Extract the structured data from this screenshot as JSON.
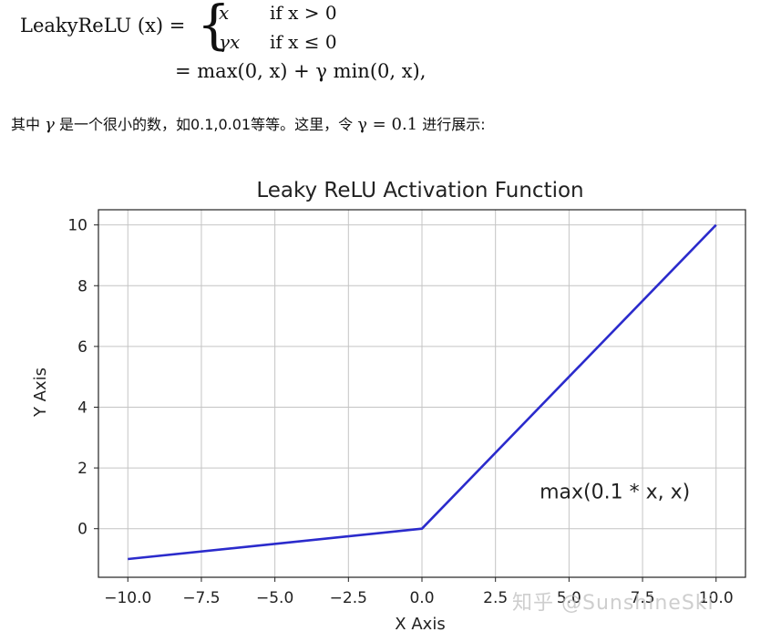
{
  "formula": {
    "lhs": "LeakyReLU (x) =",
    "case1_expr": "x",
    "case1_cond": "if x > 0",
    "case2_expr": "γx",
    "case2_cond": "if x ≤ 0",
    "line2": "= max(0, x) + γ min(0, x),"
  },
  "sentence": {
    "pre": "其中 ",
    "gamma": "γ",
    "mid": " 是一个很小的数，如0.1,0.01等等。这里，令 ",
    "eq": "γ = 0.1",
    "post": " 进行展示:"
  },
  "watermark": "知乎 @SunshineSki",
  "chart_data": {
    "type": "line",
    "title": "Leaky ReLU Activation Function",
    "xlabel": "X Axis",
    "ylabel": "Y Axis",
    "xlim": [
      -11,
      11
    ],
    "ylim": [
      -1.6,
      10.5
    ],
    "xticks": [
      -10,
      -7.5,
      -5,
      -2.5,
      0,
      2.5,
      5,
      7.5,
      10
    ],
    "xtick_labels": [
      "−10.0",
      "−7.5",
      "−5.0",
      "−2.5",
      "0.0",
      "2.5",
      "5.0",
      "7.5",
      "10.0"
    ],
    "yticks": [
      0,
      2,
      4,
      6,
      8,
      10
    ],
    "ytick_labels": [
      "0",
      "2",
      "4",
      "6",
      "8",
      "10"
    ],
    "grid": true,
    "series": [
      {
        "x": [
          -10,
          0,
          10
        ],
        "y": [
          -1,
          0,
          10
        ],
        "color": "#2b2bcc"
      }
    ],
    "annotation": {
      "text": "max(0.1 * x, x)",
      "x": 4.0,
      "y": 1.0
    }
  }
}
